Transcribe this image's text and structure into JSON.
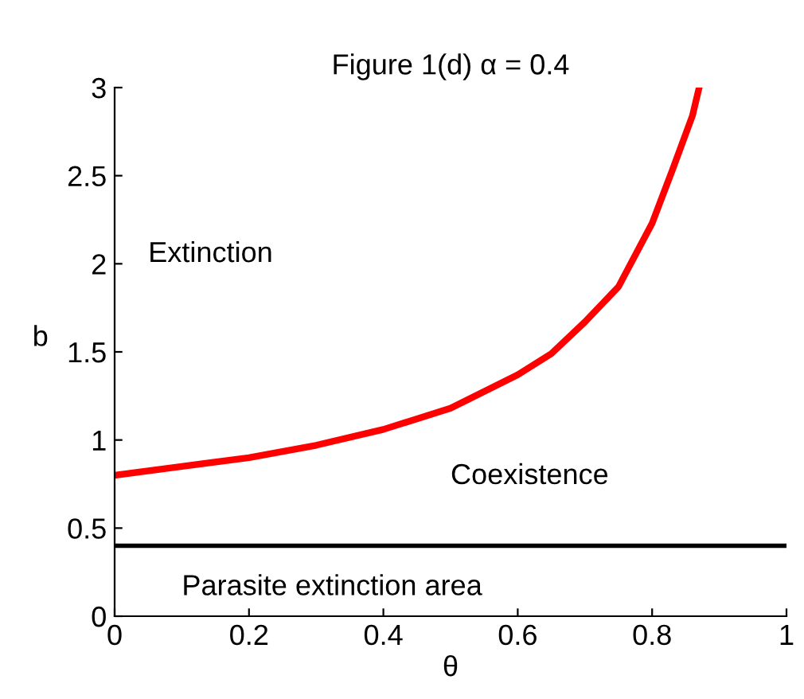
{
  "chart_data": {
    "type": "line",
    "title": "Figure 1(d) α = 0.4",
    "xlabel": "θ",
    "ylabel": "b",
    "x": [
      0,
      0.1,
      0.2,
      0.3,
      0.4,
      0.5,
      0.6,
      0.65,
      0.7,
      0.75,
      0.8,
      0.83,
      0.86,
      0.87
    ],
    "series": [
      {
        "color": "#ff0000",
        "values": [
          0.8,
          0.85,
          0.9,
          0.97,
          1.06,
          1.18,
          1.37,
          1.49,
          1.67,
          1.87,
          2.23,
          2.53,
          2.84,
          3.0
        ]
      }
    ],
    "ref_lines": [
      {
        "axis": "y",
        "value": 0.4,
        "color": "#000000"
      }
    ],
    "annotations": [
      "Extinction",
      "Coexistence",
      "Parasite extinction area"
    ],
    "xlim": [
      0,
      1
    ],
    "ylim": [
      0,
      3
    ],
    "xticks": [
      0,
      0.2,
      0.4,
      0.6,
      0.8,
      1
    ],
    "yticks": [
      0,
      0.5,
      1,
      1.5,
      2,
      2.5,
      3
    ],
    "grid": false,
    "legend": false,
    "marker": "none",
    "line_style": "solid"
  }
}
